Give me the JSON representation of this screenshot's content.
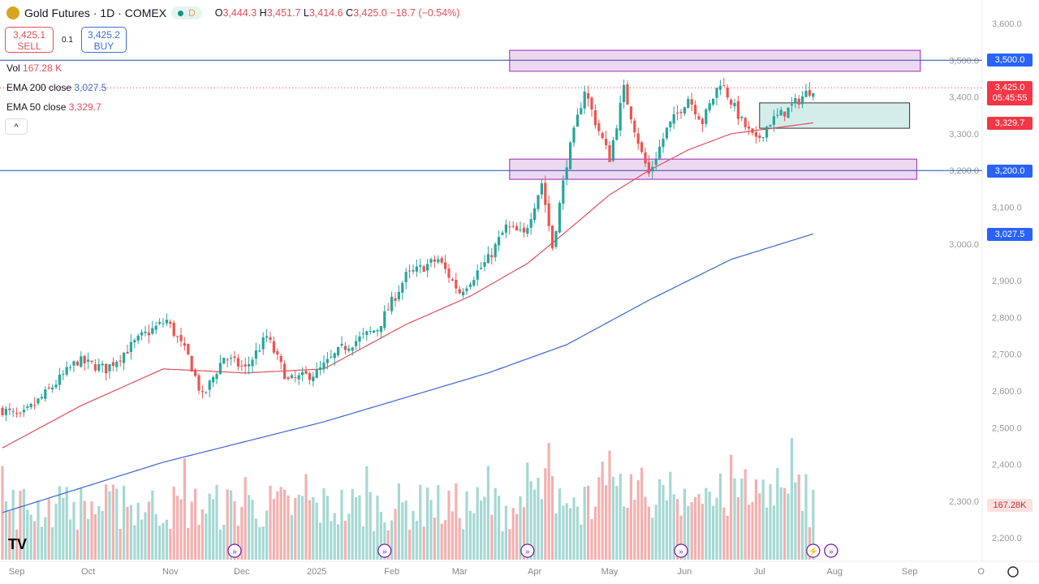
{
  "header": {
    "title": "Gold Futures · 1D · COMEX",
    "interval_badge": "D",
    "open_label": "O",
    "open": "3,444.3",
    "high_label": "H",
    "high": "3,451.7",
    "low_label": "L",
    "low": "3,414.6",
    "close_label": "C",
    "close": "3,425.0",
    "change": "−18.7 (−0.54%)"
  },
  "trade": {
    "sell_price": "3,425.1",
    "sell_label": "SELL",
    "spread": "0.1",
    "buy_price": "3,425.2",
    "buy_label": "BUY"
  },
  "legend": {
    "vol_label": "Vol",
    "vol_value": "167.28 K",
    "ema200_label": "EMA 200 close",
    "ema200_value": "3,027.5",
    "ema50_label": "EMA 50 close",
    "ema50_value": "3,329.7",
    "collapse": "^"
  },
  "price_labels": {
    "level_3500": "3,500.0",
    "last": "3,425.0",
    "countdown": "05:45:55",
    "ema50": "3,329.7",
    "level_3200": "3,200.0",
    "ema200": "3,027.5",
    "volume": "167.28K"
  },
  "colors": {
    "up": "#26a69a",
    "down": "#ef5350",
    "ema200": "#3a66d1",
    "ema50": "#e0505a",
    "zone": "#9c27b0",
    "green_zone": "#26a69a"
  },
  "chart_data": {
    "type": "candlestick",
    "title": "Gold Futures · 1D · COMEX",
    "ylim": [
      2150,
      3620
    ],
    "y_ticks": [
      2200,
      2300,
      2400,
      2500,
      2600,
      2700,
      2800,
      2900,
      3000,
      3100,
      3200,
      3300,
      3400,
      3500,
      3600
    ],
    "y_tick_labels": [
      "2,200.0",
      "2,300.0",
      "2,400.0",
      "2,500.0",
      "2,600.0",
      "2,700.0",
      "2,800.0",
      "2,900.0",
      "3,000.0",
      "3,100.0",
      "3,200.0",
      "3,300.0",
      "3,400.0",
      "3,500.0",
      "3,600.0"
    ],
    "x_tick_labels": [
      "Sep",
      "Oct",
      "Nov",
      "Dec",
      "2025",
      "Feb",
      "Mar",
      "Apr",
      "May",
      "Jun",
      "Jul",
      "Aug",
      "Sep",
      "O"
    ],
    "x_tick_bars": [
      4,
      24,
      47,
      67,
      88,
      109,
      128,
      149,
      170,
      191,
      212,
      233,
      254,
      274
    ],
    "bar_count": 228,
    "close_keypoints": [
      [
        0,
        2549
      ],
      [
        5,
        2527
      ],
      [
        11,
        2582
      ],
      [
        21,
        2682
      ],
      [
        29,
        2660
      ],
      [
        39,
        2748
      ],
      [
        46,
        2792
      ],
      [
        52,
        2693
      ],
      [
        56,
        2582
      ],
      [
        62,
        2693
      ],
      [
        68,
        2660
      ],
      [
        74,
        2748
      ],
      [
        80,
        2627
      ],
      [
        88,
        2649
      ],
      [
        95,
        2715
      ],
      [
        105,
        2770
      ],
      [
        113,
        2913
      ],
      [
        122,
        2958
      ],
      [
        128,
        2869
      ],
      [
        136,
        2958
      ],
      [
        141,
        3046
      ],
      [
        146,
        3024
      ],
      [
        151,
        3167
      ],
      [
        154,
        2991
      ],
      [
        158,
        3223
      ],
      [
        163,
        3421
      ],
      [
        166,
        3333
      ],
      [
        170,
        3234
      ],
      [
        174,
        3421
      ],
      [
        179,
        3245
      ],
      [
        181,
        3190
      ],
      [
        186,
        3311
      ],
      [
        192,
        3399
      ],
      [
        196,
        3333
      ],
      [
        201,
        3443
      ],
      [
        207,
        3333
      ],
      [
        211,
        3278
      ],
      [
        215,
        3333
      ],
      [
        220,
        3366
      ],
      [
        225,
        3410
      ],
      [
        227,
        3425
      ]
    ],
    "ema200_keypoints": [
      [
        0,
        2269
      ],
      [
        45,
        2406
      ],
      [
        90,
        2516
      ],
      [
        136,
        2649
      ],
      [
        158,
        2726
      ],
      [
        181,
        2847
      ],
      [
        204,
        2958
      ],
      [
        227,
        3027.5
      ]
    ],
    "ema50_keypoints": [
      [
        0,
        2445
      ],
      [
        22,
        2560
      ],
      [
        45,
        2660
      ],
      [
        68,
        2649
      ],
      [
        90,
        2660
      ],
      [
        113,
        2781
      ],
      [
        131,
        2858
      ],
      [
        147,
        2947
      ],
      [
        158,
        3035
      ],
      [
        170,
        3134
      ],
      [
        181,
        3200
      ],
      [
        192,
        3256
      ],
      [
        204,
        3300
      ],
      [
        227,
        3329.7
      ]
    ],
    "horizontal_lines": [
      3500,
      3200
    ],
    "zones": [
      {
        "from_bar": 142,
        "to_bar": 257,
        "low": 3470,
        "high": 3527,
        "color": "purple"
      },
      {
        "from_bar": 142,
        "to_bar": 256,
        "low": 3176,
        "high": 3231,
        "color": "purple"
      },
      {
        "from_bar": 212,
        "to_bar": 254,
        "low": 3315,
        "high": 3384,
        "color": "green"
      }
    ],
    "event_bars": [
      65,
      107,
      147,
      190,
      227,
      232
    ],
    "last_volume": "167.28K"
  }
}
